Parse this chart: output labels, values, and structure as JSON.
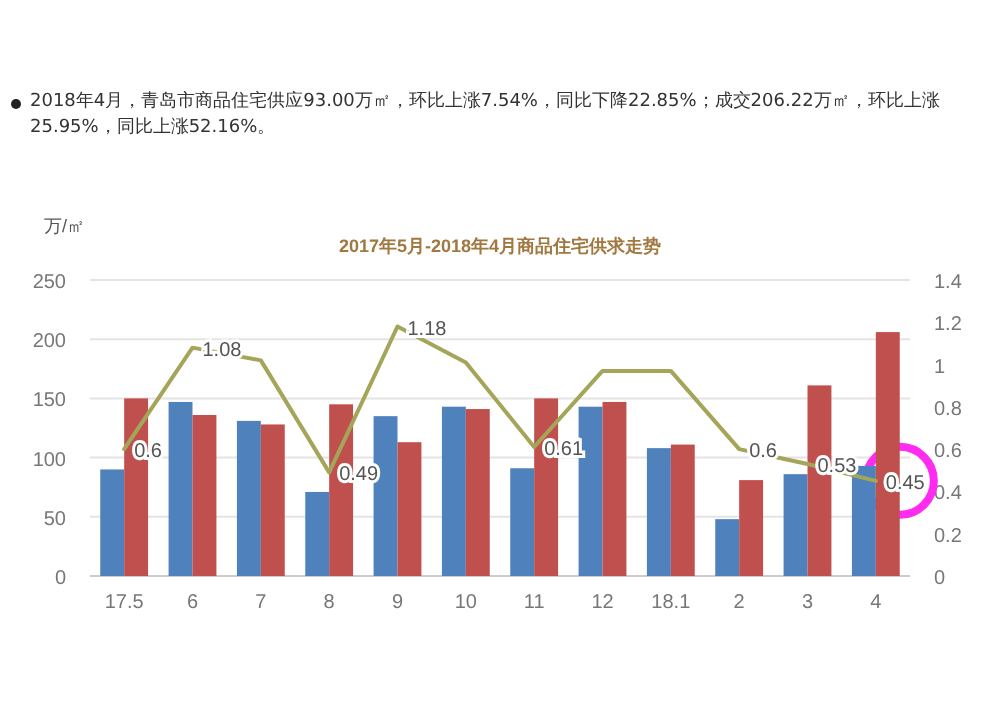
{
  "chart_data": {
    "type": "bar",
    "title": "2017年5月-2018年4月商品住宅供求走势",
    "annotations": [
      "2018年4月，青岛市商品住宅供应93.00万㎡，环比上涨7.54%，同比下降22.85%；成交206.22万㎡，环比上涨25.95%，同比上涨52.16%。"
    ],
    "ylabel": "万/㎡",
    "categories": [
      "17.5",
      "6",
      "7",
      "8",
      "9",
      "10",
      "11",
      "12",
      "18.1",
      "2",
      "3",
      "4"
    ],
    "series": [
      {
        "color": "#4f81bd",
        "values": [
          90,
          147,
          131,
          71,
          135,
          143,
          91,
          143,
          108,
          48,
          86,
          93
        ]
      },
      {
        "color": "#c0504d",
        "values": [
          150,
          136,
          128,
          145,
          113,
          141,
          150,
          147,
          111,
          81,
          161,
          206
        ]
      },
      {
        "type": "line",
        "axis": "y2",
        "color": "#a5a55a",
        "values": [
          0.6,
          1.08,
          1.02,
          0.49,
          1.18,
          1.01,
          0.61,
          0.97,
          0.97,
          0.6,
          0.53,
          0.45
        ],
        "value_labels": [
          "0.6",
          "1.08",
          null,
          "0.49",
          "1.18",
          null,
          "0.61",
          null,
          null,
          "0.6",
          "0.53",
          "0.45"
        ]
      }
    ],
    "ylim": [
      0,
      250
    ],
    "yticks": [
      0,
      50,
      100,
      150,
      200,
      250
    ],
    "y2lim": [
      0,
      1.4
    ],
    "y2ticks": [
      0,
      0.2,
      0.4,
      0.6,
      0.8,
      1,
      1.2,
      1.4
    ],
    "grid": "y"
  }
}
